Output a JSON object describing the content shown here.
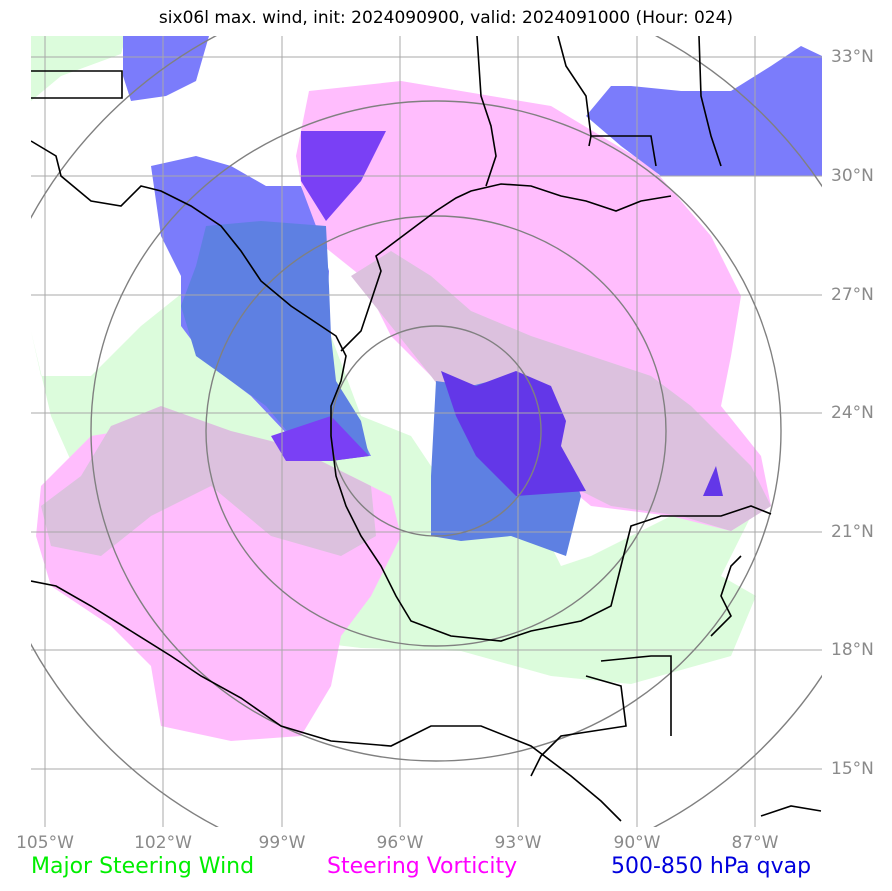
{
  "title": "six06l max. wind, init: 2024090900, valid: 2024091000 (Hour: 024)",
  "axes": {
    "lon_ticks": [
      "105°W",
      "102°W",
      "99°W",
      "96°W",
      "93°W",
      "90°W",
      "87°W"
    ],
    "lat_ticks": [
      "33°N",
      "30°N",
      "27°N",
      "24°N",
      "21°N",
      "18°N",
      "15°N"
    ]
  },
  "legend": [
    {
      "label": "Major Steering Wind",
      "color": "#00ee00"
    },
    {
      "label": "Steering Vorticity",
      "color": "#ff00ff"
    },
    {
      "label": "500-850 hPa qvap",
      "color": "#0000dd"
    }
  ],
  "layer_colors": {
    "steering_wind": "#dcfcdc",
    "steering_vorticity": "#ffbdfd",
    "overlap_wind_vorticity": "#dcc1de",
    "qvap": "#7b7cfb",
    "qvap_over_wind": "#5e80e2",
    "qvap_over_vorticity": "#7a40f5",
    "qvap_strong": "#6337e8",
    "grid": "#a8a8a8",
    "range_rings": "#808080",
    "coastline": "#000000"
  },
  "icons": [
    "range-ring-icon",
    "coastline-icon"
  ]
}
